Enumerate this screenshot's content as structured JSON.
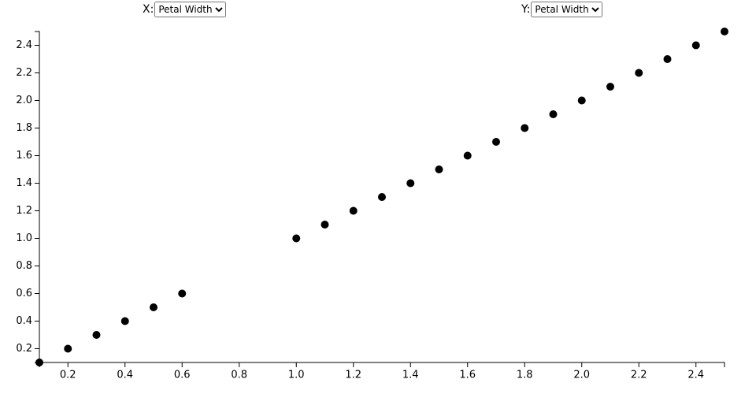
{
  "controls": {
    "x_label": "X:",
    "x_selected": "Petal Width",
    "y_label": "Y:",
    "y_selected": "Petal Width"
  },
  "chart_data": {
    "type": "scatter",
    "color": "#000000",
    "x": [
      0.1,
      0.2,
      0.3,
      0.4,
      0.5,
      0.6,
      1.0,
      1.1,
      1.2,
      1.3,
      1.4,
      1.5,
      1.6,
      1.7,
      1.8,
      1.9,
      2.0,
      2.1,
      2.2,
      2.3,
      2.4,
      2.5
    ],
    "values": [
      0.1,
      0.2,
      0.3,
      0.4,
      0.5,
      0.6,
      1.0,
      1.1,
      1.2,
      1.3,
      1.4,
      1.5,
      1.6,
      1.7,
      1.8,
      1.9,
      2.0,
      2.1,
      2.2,
      2.3,
      2.4,
      2.5
    ],
    "xlim": [
      0.1,
      2.5
    ],
    "ylim": [
      0.1,
      2.5
    ],
    "xticks": [
      0.2,
      0.4,
      0.6,
      0.8,
      {
        "value": 1,
        "label": "1.0"
      },
      1.2,
      1.4,
      1.6,
      1.8,
      {
        "value": 2,
        "label": "2.0"
      },
      2.2,
      2.4
    ],
    "yticks": [
      0.2,
      0.4,
      0.6,
      0.8,
      {
        "value": 1,
        "label": "1.0"
      },
      1.2,
      1.4,
      1.6,
      1.8,
      {
        "value": 2,
        "label": "2.0"
      },
      2.2,
      2.4
    ],
    "grid": false
  }
}
